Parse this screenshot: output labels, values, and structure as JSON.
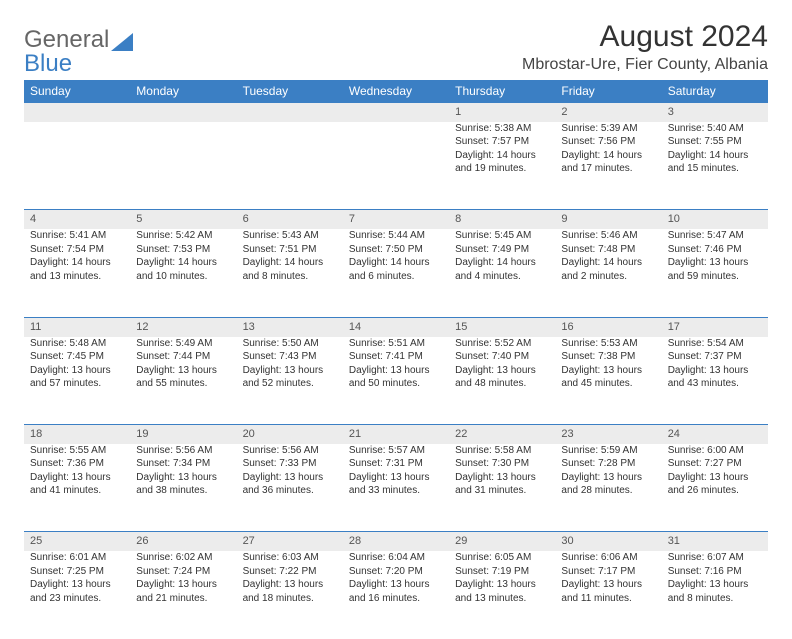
{
  "logo": {
    "part1": "General",
    "part2": "Blue"
  },
  "title": "August 2024",
  "location": "Mbrostar-Ure, Fier County, Albania",
  "dayHeaders": [
    "Sunday",
    "Monday",
    "Tuesday",
    "Wednesday",
    "Thursday",
    "Friday",
    "Saturday"
  ],
  "accentColor": "#3b7fc4",
  "greyRowColor": "#ececec",
  "weeks": [
    [
      null,
      null,
      null,
      null,
      {
        "n": "1",
        "sr": "5:38 AM",
        "ss": "7:57 PM",
        "dl": "14 hours and 19 minutes."
      },
      {
        "n": "2",
        "sr": "5:39 AM",
        "ss": "7:56 PM",
        "dl": "14 hours and 17 minutes."
      },
      {
        "n": "3",
        "sr": "5:40 AM",
        "ss": "7:55 PM",
        "dl": "14 hours and 15 minutes."
      }
    ],
    [
      {
        "n": "4",
        "sr": "5:41 AM",
        "ss": "7:54 PM",
        "dl": "14 hours and 13 minutes."
      },
      {
        "n": "5",
        "sr": "5:42 AM",
        "ss": "7:53 PM",
        "dl": "14 hours and 10 minutes."
      },
      {
        "n": "6",
        "sr": "5:43 AM",
        "ss": "7:51 PM",
        "dl": "14 hours and 8 minutes."
      },
      {
        "n": "7",
        "sr": "5:44 AM",
        "ss": "7:50 PM",
        "dl": "14 hours and 6 minutes."
      },
      {
        "n": "8",
        "sr": "5:45 AM",
        "ss": "7:49 PM",
        "dl": "14 hours and 4 minutes."
      },
      {
        "n": "9",
        "sr": "5:46 AM",
        "ss": "7:48 PM",
        "dl": "14 hours and 2 minutes."
      },
      {
        "n": "10",
        "sr": "5:47 AM",
        "ss": "7:46 PM",
        "dl": "13 hours and 59 minutes."
      }
    ],
    [
      {
        "n": "11",
        "sr": "5:48 AM",
        "ss": "7:45 PM",
        "dl": "13 hours and 57 minutes."
      },
      {
        "n": "12",
        "sr": "5:49 AM",
        "ss": "7:44 PM",
        "dl": "13 hours and 55 minutes."
      },
      {
        "n": "13",
        "sr": "5:50 AM",
        "ss": "7:43 PM",
        "dl": "13 hours and 52 minutes."
      },
      {
        "n": "14",
        "sr": "5:51 AM",
        "ss": "7:41 PM",
        "dl": "13 hours and 50 minutes."
      },
      {
        "n": "15",
        "sr": "5:52 AM",
        "ss": "7:40 PM",
        "dl": "13 hours and 48 minutes."
      },
      {
        "n": "16",
        "sr": "5:53 AM",
        "ss": "7:38 PM",
        "dl": "13 hours and 45 minutes."
      },
      {
        "n": "17",
        "sr": "5:54 AM",
        "ss": "7:37 PM",
        "dl": "13 hours and 43 minutes."
      }
    ],
    [
      {
        "n": "18",
        "sr": "5:55 AM",
        "ss": "7:36 PM",
        "dl": "13 hours and 41 minutes."
      },
      {
        "n": "19",
        "sr": "5:56 AM",
        "ss": "7:34 PM",
        "dl": "13 hours and 38 minutes."
      },
      {
        "n": "20",
        "sr": "5:56 AM",
        "ss": "7:33 PM",
        "dl": "13 hours and 36 minutes."
      },
      {
        "n": "21",
        "sr": "5:57 AM",
        "ss": "7:31 PM",
        "dl": "13 hours and 33 minutes."
      },
      {
        "n": "22",
        "sr": "5:58 AM",
        "ss": "7:30 PM",
        "dl": "13 hours and 31 minutes."
      },
      {
        "n": "23",
        "sr": "5:59 AM",
        "ss": "7:28 PM",
        "dl": "13 hours and 28 minutes."
      },
      {
        "n": "24",
        "sr": "6:00 AM",
        "ss": "7:27 PM",
        "dl": "13 hours and 26 minutes."
      }
    ],
    [
      {
        "n": "25",
        "sr": "6:01 AM",
        "ss": "7:25 PM",
        "dl": "13 hours and 23 minutes."
      },
      {
        "n": "26",
        "sr": "6:02 AM",
        "ss": "7:24 PM",
        "dl": "13 hours and 21 minutes."
      },
      {
        "n": "27",
        "sr": "6:03 AM",
        "ss": "7:22 PM",
        "dl": "13 hours and 18 minutes."
      },
      {
        "n": "28",
        "sr": "6:04 AM",
        "ss": "7:20 PM",
        "dl": "13 hours and 16 minutes."
      },
      {
        "n": "29",
        "sr": "6:05 AM",
        "ss": "7:19 PM",
        "dl": "13 hours and 13 minutes."
      },
      {
        "n": "30",
        "sr": "6:06 AM",
        "ss": "7:17 PM",
        "dl": "13 hours and 11 minutes."
      },
      {
        "n": "31",
        "sr": "6:07 AM",
        "ss": "7:16 PM",
        "dl": "13 hours and 8 minutes."
      }
    ]
  ],
  "labels": {
    "sunrise": "Sunrise: ",
    "sunset": "Sunset: ",
    "daylight": "Daylight: "
  }
}
